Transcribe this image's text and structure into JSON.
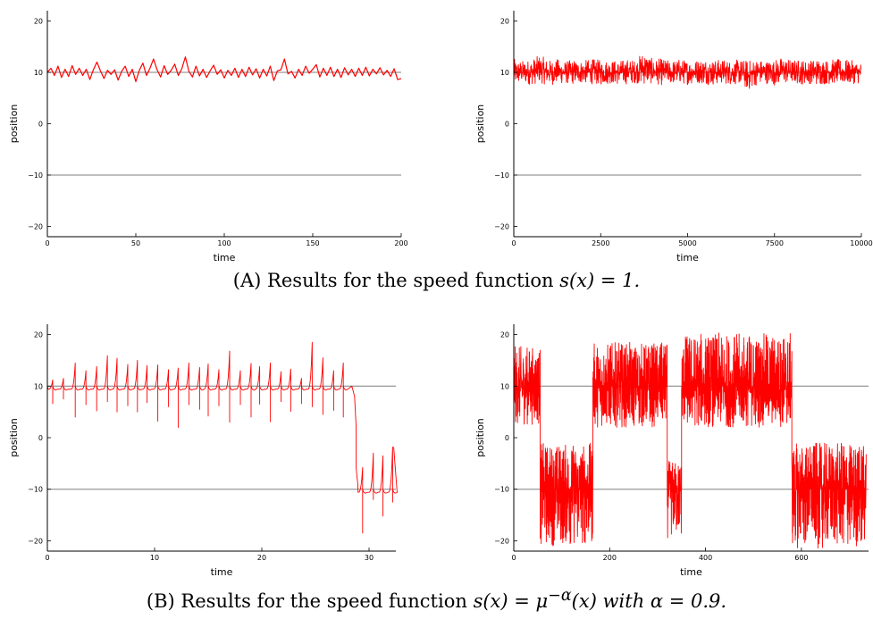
{
  "chart_data": [
    {
      "type": "line",
      "panel": "A-left",
      "xlabel": "time",
      "ylabel": "position",
      "xlim": [
        0,
        200
      ],
      "ylim": [
        -22,
        22
      ],
      "xticks": [
        0,
        50,
        100,
        150,
        200
      ],
      "yticks": [
        -20,
        -10,
        0,
        10,
        20
      ],
      "hlines": [
        10,
        -10
      ],
      "series": [
        {
          "color": "#ff0000",
          "x": [
            0,
            2,
            4,
            6,
            8,
            10,
            12,
            14,
            16,
            18,
            20,
            22,
            24,
            26,
            28,
            30,
            32,
            34,
            36,
            38,
            40,
            42,
            44,
            46,
            48,
            50,
            52,
            54,
            56,
            58,
            60,
            62,
            64,
            66,
            68,
            70,
            72,
            74,
            76,
            78,
            80,
            82,
            84,
            86,
            88,
            90,
            92,
            94,
            96,
            98,
            100,
            102,
            104,
            106,
            108,
            110,
            112,
            114,
            116,
            118,
            120,
            122,
            124,
            126,
            128,
            130,
            132,
            134,
            136,
            138,
            140,
            142,
            144,
            146,
            148,
            150,
            152,
            154,
            156,
            158,
            160,
            162,
            164,
            166,
            168,
            170,
            172,
            174,
            176,
            178,
            180,
            182,
            184,
            186,
            188,
            190,
            192,
            194,
            196,
            198,
            200
          ],
          "y": [
            10,
            10.8,
            9.4,
            11.2,
            9.0,
            10.6,
            9.2,
            11.3,
            9.6,
            10.8,
            9.4,
            10.6,
            8.6,
            10.5,
            12.0,
            10.3,
            8.8,
            10.4,
            9.6,
            10.5,
            8.5,
            10.2,
            11.2,
            9.2,
            10.6,
            8.2,
            10.4,
            11.8,
            9.4,
            10.8,
            12.6,
            10.5,
            9.1,
            11.3,
            9.6,
            10.4,
            11.6,
            9.4,
            10.7,
            13.0,
            10.2,
            9.1,
            11.2,
            9.3,
            10.6,
            9.0,
            10.3,
            11.4,
            9.6,
            10.5,
            8.9,
            10.4,
            9.4,
            10.8,
            9.0,
            10.6,
            9.2,
            11.0,
            9.5,
            10.7,
            8.9,
            10.6,
            9.3,
            11.2,
            8.4,
            10.3,
            10.5,
            12.6,
            9.7,
            10.2,
            8.9,
            10.6,
            9.4,
            11.2,
            9.8,
            10.6,
            11.5,
            9.1,
            10.8,
            9.4,
            11.0,
            9.2,
            10.6,
            9.0,
            10.9,
            9.5,
            10.6,
            9.2,
            10.8,
            9.4,
            11.0,
            9.3,
            10.6,
            9.7,
            10.9,
            9.5,
            10.4,
            9.2,
            10.7,
            8.6,
            8.8
          ]
        }
      ]
    },
    {
      "type": "line",
      "panel": "A-right",
      "xlabel": "time",
      "ylabel": "position",
      "xlim": [
        0,
        10000
      ],
      "ylim": [
        -22,
        22
      ],
      "xticks": [
        0,
        2500,
        5000,
        7500,
        10000
      ],
      "yticks": [
        -20,
        -10,
        0,
        10,
        20
      ],
      "hlines": [
        10,
        -10
      ],
      "series": [
        {
          "color": "#ff0000",
          "x": [
            0,
            250,
            500,
            750,
            1000,
            1250,
            1500,
            1750,
            2000,
            2250,
            2500,
            2750,
            3000,
            3250,
            3500,
            3750,
            4000,
            4250,
            4500,
            4750,
            5000,
            5250,
            5500,
            5750,
            6000,
            6250,
            6500,
            6750,
            7000,
            7250,
            7500,
            7750,
            8000,
            8250,
            8500,
            8750,
            9000,
            9250,
            9500,
            9750,
            10000
          ],
          "ymin": [
            7.4,
            7.8,
            7.6,
            7.9,
            7.5,
            7.7,
            7.8,
            7.6,
            7.9,
            7.7,
            7.5,
            7.8,
            7.6,
            7.7,
            7.9,
            7.6,
            7.8,
            7.5,
            7.7,
            7.8,
            7.6,
            7.9,
            7.7,
            7.5,
            7.8,
            7.6,
            7.7,
            6.4,
            7.6,
            7.8,
            7.5,
            7.7,
            7.9,
            7.6,
            7.8,
            7.5,
            7.7,
            7.8,
            7.6,
            7.8,
            7.8
          ],
          "ymax": [
            12.6,
            12.3,
            12.5,
            13.4,
            12.4,
            12.6,
            12.2,
            12.5,
            12.3,
            12.6,
            12.4,
            12.5,
            12.3,
            12.6,
            12.4,
            14.3,
            12.5,
            12.7,
            12.3,
            12.6,
            12.4,
            12.5,
            12.8,
            12.4,
            12.6,
            12.3,
            12.5,
            12.4,
            12.6,
            12.3,
            12.5,
            13.0,
            12.4,
            12.6,
            12.3,
            12.8,
            12.4,
            12.6,
            12.5,
            12.3,
            12.0
          ]
        }
      ]
    },
    {
      "type": "line",
      "panel": "B-left",
      "xlabel": "time",
      "ylabel": "position",
      "xlim": [
        0,
        32.5
      ],
      "ylim": [
        -22,
        22
      ],
      "xticks": [
        0,
        10,
        20,
        30
      ],
      "yticks": [
        -20,
        -10,
        0,
        10,
        20
      ],
      "hlines": [
        10,
        -10
      ],
      "series": [
        {
          "color": "#ff0000",
          "cycle_centers": [
            0.5,
            1.5,
            2.6,
            3.6,
            4.6,
            5.6,
            6.5,
            7.5,
            8.4,
            9.3,
            10.3,
            11.3,
            12.2,
            13.2,
            14.2,
            15.0,
            16.0,
            17.0,
            18.0,
            19.0,
            19.8,
            20.8,
            21.8,
            22.7,
            23.7,
            24.7,
            25.7,
            26.7,
            27.6
          ],
          "cycle_low": [
            6.6,
            7.5,
            4.0,
            6.4,
            5.2,
            7.0,
            5.0,
            6.2,
            5.0,
            6.8,
            3.2,
            6.0,
            2.0,
            6.4,
            5.5,
            4.2,
            6.2,
            3.0,
            6.4,
            4.0,
            6.5,
            3.1,
            7.0,
            5.1,
            6.6,
            6.0,
            4.5,
            5.3,
            4.0
          ],
          "cycle_high": [
            11.2,
            11.5,
            14.5,
            13.0,
            13.8,
            15.9,
            15.4,
            14.2,
            15.0,
            14.0,
            14.1,
            13.2,
            13.5,
            14.5,
            13.6,
            14.3,
            13.2,
            16.8,
            13.0,
            14.4,
            13.8,
            14.5,
            12.8,
            13.3,
            11.5,
            18.5,
            15.5,
            13.0,
            14.5
          ],
          "transition_time": 28.8,
          "lower_cycle_centers": [
            29.4,
            30.4,
            31.3,
            32.2
          ],
          "lower_cycle_low": [
            -18.5,
            -12.0,
            -15.2,
            -12.5
          ],
          "lower_cycle_high": [
            -5.8,
            -3.0,
            -3.5,
            -1.8
          ],
          "end_time": 32.3
        }
      ]
    },
    {
      "type": "line",
      "panel": "B-right",
      "xlabel": "time",
      "ylabel": "position",
      "xlim": [
        0,
        740
      ],
      "ylim": [
        -22,
        22
      ],
      "xticks": [
        0,
        200,
        400,
        600
      ],
      "yticks": [
        -20,
        -10,
        0,
        10,
        20
      ],
      "hlines": [
        10,
        -10
      ],
      "series": [
        {
          "color": "#ff0000",
          "regimes": [
            {
              "start": 0,
              "end": 55,
              "center": 10,
              "ymin": 2.5,
              "ymax": 17.8
            },
            {
              "start": 55,
              "end": 165,
              "center": -10,
              "ymin": -21.0,
              "ymax": -1.0
            },
            {
              "start": 165,
              "end": 320,
              "center": 10,
              "ymin": 2.0,
              "ymax": 18.5
            },
            {
              "start": 320,
              "end": 350,
              "center": -10,
              "ymin": -19.5,
              "ymax": -4.5
            },
            {
              "start": 350,
              "end": 580,
              "center": 10,
              "ymin": 2.0,
              "ymax": 20.3
            },
            {
              "start": 580,
              "end": 735,
              "center": -10,
              "ymin": -21.5,
              "ymax": -1.0
            }
          ]
        }
      ]
    }
  ],
  "captions": {
    "a_label": "(A)",
    "a_text": "Results for the speed function",
    "a_formula": "s(x) = 1.",
    "b_label": "(B)",
    "b_text": "Results for the speed function",
    "b_formula": "s(x) = μ",
    "b_formula_exp": "−α",
    "b_formula_tail": "(x) with α = 0.9."
  }
}
